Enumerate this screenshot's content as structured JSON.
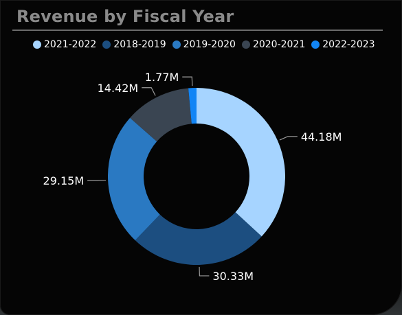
{
  "colors": {
    "background": "#050505",
    "title": "#8a8a8a",
    "text": "#ffffff",
    "leader_line": "#9a9a9a"
  },
  "chart_data": {
    "type": "pie",
    "variant": "donut",
    "title": "Revenue by Fiscal Year",
    "legend_position": "top",
    "legend": [
      {
        "name": "2021-2022",
        "color": "#a6d4ff"
      },
      {
        "name": "2018-2019",
        "color": "#1c4e80"
      },
      {
        "name": "2019-2020",
        "color": "#2a79c2"
      },
      {
        "name": "2020-2021",
        "color": "#3a4552"
      },
      {
        "name": "2022-2023",
        "color": "#1285f5"
      }
    ],
    "slices": [
      {
        "name": "2021-2022",
        "value": 44.18,
        "label": "44.18M",
        "color": "#a6d4ff"
      },
      {
        "name": "2018-2019",
        "value": 30.33,
        "label": "30.33M",
        "color": "#1c4e80"
      },
      {
        "name": "2019-2020",
        "value": 29.15,
        "label": "29.15M",
        "color": "#2a79c2"
      },
      {
        "name": "2020-2021",
        "value": 14.42,
        "label": "14.42M",
        "color": "#3a4552"
      },
      {
        "name": "2022-2023",
        "value": 1.77,
        "label": "1.77M",
        "color": "#1285f5"
      }
    ]
  }
}
